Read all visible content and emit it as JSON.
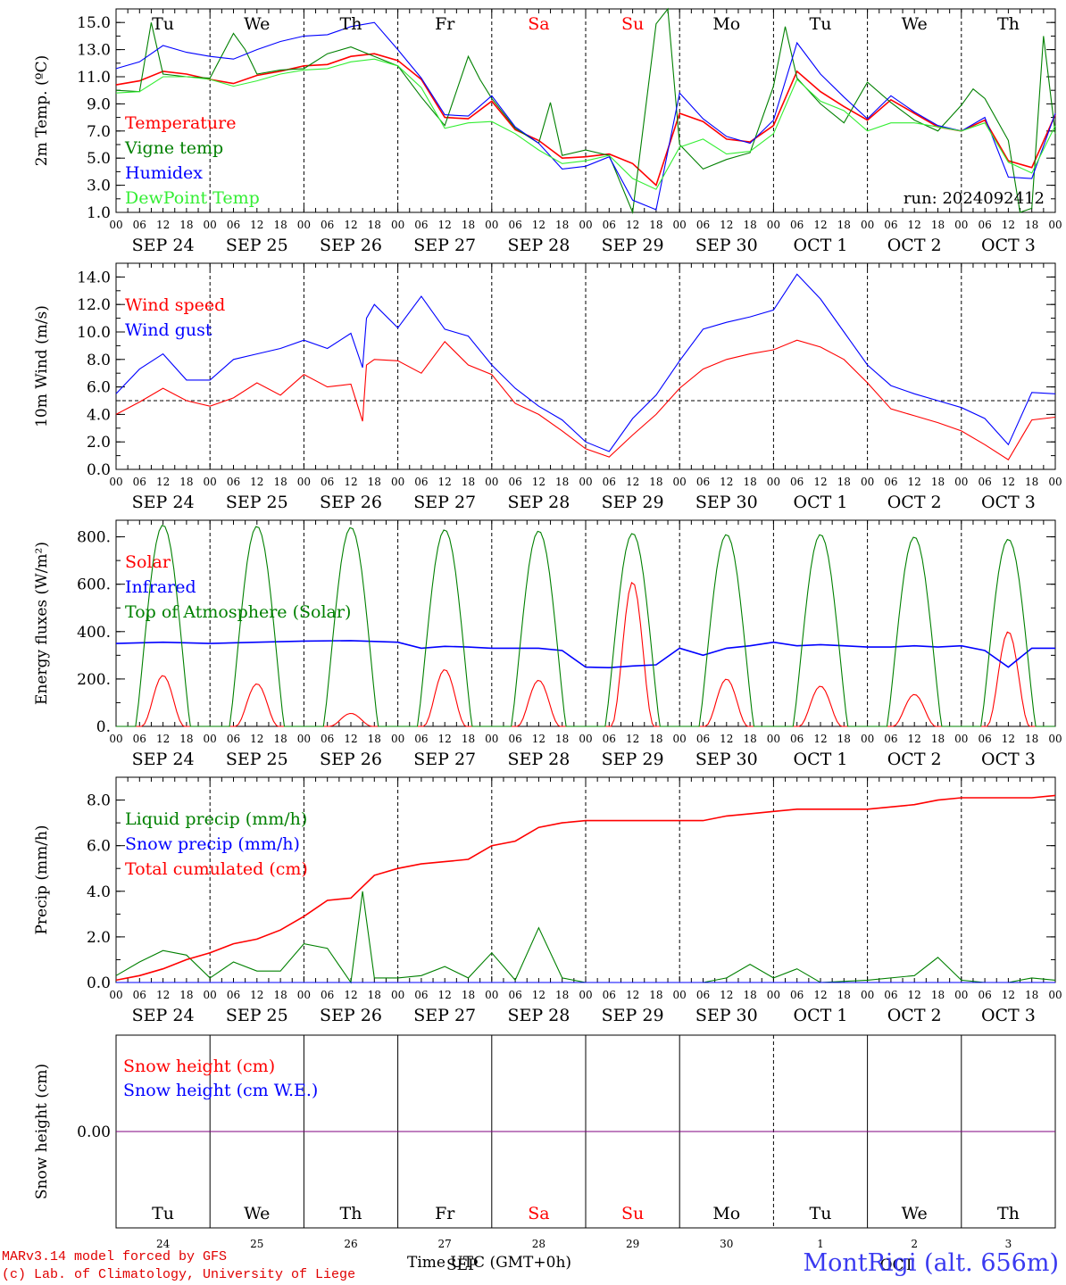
{
  "run_label": "run: 2024092412",
  "days": [
    {
      "dow": "Tu",
      "date": "SEP 24",
      "num": "24",
      "weekend": false
    },
    {
      "dow": "We",
      "date": "SEP 25",
      "num": "25",
      "weekend": false
    },
    {
      "dow": "Th",
      "date": "SEP 26",
      "num": "26",
      "weekend": false
    },
    {
      "dow": "Fr",
      "date": "SEP 27",
      "num": "27",
      "weekend": false
    },
    {
      "dow": "Sa",
      "date": "SEP 28",
      "num": "28",
      "weekend": true
    },
    {
      "dow": "Su",
      "date": "SEP 29",
      "num": "29",
      "weekend": true
    },
    {
      "dow": "Mo",
      "date": "SEP 30",
      "num": "30",
      "weekend": false
    },
    {
      "dow": "Tu",
      "date": "OCT  1",
      "num": "1",
      "weekend": false
    },
    {
      "dow": "We",
      "date": "OCT  2",
      "num": "2",
      "weekend": false
    },
    {
      "dow": "Th",
      "date": "OCT  3",
      "num": "3",
      "weekend": false
    }
  ],
  "hour_ticks": [
    "00",
    "06",
    "12",
    "18"
  ],
  "bottom_axis": {
    "month_left": "SEP",
    "month_right": "OCT",
    "title": "Time UTC (GMT+0h)"
  },
  "footer": {
    "line1": "MARv3.14 model forced by GFS",
    "line2": "(c) Lab. of Climatology, University of Liege",
    "station": "MontRigi (alt. 656m)"
  },
  "colors": {
    "red": "#ff0000",
    "darkgreen": "#008000",
    "blue": "#0000ff",
    "lightgreen": "#33ee33",
    "purple": "#7f007f",
    "weekend": "#ff0000"
  },
  "chart_data": [
    {
      "type": "line",
      "ylabel": "2m Temp. (ºC)",
      "ylim": [
        1,
        16
      ],
      "yticks": [
        "1.0",
        "3.0",
        "5.0",
        "7.0",
        "9.0",
        "11.0",
        "13.0",
        "15.0"
      ],
      "x_unit": "hours from SEP 24 00 UTC",
      "series": [
        {
          "name": "Temperature",
          "color": "red",
          "x": [
            0,
            6,
            12,
            18,
            24,
            30,
            36,
            42,
            48,
            54,
            60,
            66,
            72,
            78,
            84,
            90,
            96,
            102,
            108,
            114,
            120,
            126,
            132,
            138,
            144,
            150,
            156,
            162,
            168,
            174,
            180,
            186,
            192,
            198,
            204,
            210,
            216,
            222,
            228,
            234,
            240
          ],
          "y": [
            10.4,
            10.7,
            11.4,
            11.2,
            10.8,
            10.5,
            11.1,
            11.4,
            11.8,
            11.9,
            12.5,
            12.7,
            12.2,
            10.8,
            8.0,
            7.9,
            9.2,
            7.1,
            6.3,
            5.0,
            5.1,
            5.3,
            4.6,
            3.0,
            8.3,
            7.7,
            6.4,
            6.2,
            7.4,
            11.4,
            9.9,
            8.8,
            7.8,
            9.3,
            8.3,
            7.3,
            7.0,
            7.8,
            4.8,
            4.3,
            8.2
          ]
        },
        {
          "name": "Vigne temp",
          "color": "darkgreen",
          "x": [
            0,
            6,
            9,
            12,
            18,
            24,
            30,
            33,
            36,
            42,
            48,
            54,
            60,
            66,
            72,
            78,
            84,
            90,
            93,
            96,
            102,
            108,
            111,
            114,
            120,
            126,
            132,
            138,
            141,
            144,
            150,
            156,
            162,
            168,
            171,
            174,
            180,
            186,
            192,
            198,
            204,
            210,
            216,
            219,
            222,
            228,
            231,
            234,
            237,
            240
          ],
          "y": [
            10.0,
            9.9,
            15.0,
            11.2,
            11.0,
            10.9,
            14.2,
            13.0,
            11.2,
            11.5,
            11.6,
            12.7,
            13.2,
            12.5,
            11.8,
            9.5,
            7.4,
            12.5,
            10.8,
            9.4,
            7.2,
            6.1,
            9.1,
            5.2,
            5.6,
            5.2,
            1.0,
            14.9,
            16.0,
            6.0,
            4.2,
            4.9,
            5.4,
            10.3,
            14.7,
            10.9,
            9.0,
            7.6,
            10.6,
            9.1,
            7.8,
            7.0,
            8.9,
            10.1,
            9.4,
            6.3,
            0.5,
            1.3,
            14.0,
            6.8
          ]
        },
        {
          "name": "Humidex",
          "color": "blue",
          "x": [
            0,
            6,
            12,
            18,
            24,
            30,
            36,
            42,
            48,
            54,
            60,
            66,
            72,
            78,
            84,
            90,
            96,
            102,
            108,
            114,
            120,
            126,
            132,
            138,
            144,
            150,
            156,
            162,
            168,
            174,
            180,
            186,
            192,
            198,
            204,
            210,
            216,
            222,
            228,
            234,
            240
          ],
          "y": [
            11.6,
            12.1,
            13.3,
            12.8,
            12.5,
            12.3,
            13.0,
            13.6,
            14.0,
            14.1,
            14.7,
            15.0,
            13.0,
            10.9,
            8.2,
            8.1,
            9.6,
            7.3,
            6.1,
            4.2,
            4.4,
            5.1,
            1.9,
            1.2,
            9.8,
            7.9,
            6.6,
            6.1,
            7.8,
            13.5,
            11.2,
            9.5,
            7.9,
            9.6,
            8.4,
            7.4,
            7.0,
            8.0,
            3.6,
            3.5,
            8.3
          ]
        },
        {
          "name": "DewPoint Temp",
          "color": "lightgreen",
          "x": [
            0,
            6,
            12,
            18,
            24,
            30,
            36,
            42,
            48,
            54,
            60,
            66,
            72,
            78,
            84,
            90,
            96,
            102,
            108,
            114,
            120,
            126,
            132,
            138,
            144,
            150,
            156,
            162,
            168,
            174,
            180,
            186,
            192,
            198,
            204,
            210,
            216,
            222,
            228,
            234,
            240
          ],
          "y": [
            9.8,
            9.9,
            11.0,
            11.0,
            10.8,
            10.3,
            10.7,
            11.2,
            11.5,
            11.6,
            12.1,
            12.3,
            11.8,
            10.2,
            7.2,
            7.6,
            7.7,
            6.8,
            5.6,
            4.6,
            4.8,
            5.2,
            3.5,
            2.7,
            5.8,
            6.4,
            5.3,
            5.5,
            6.8,
            10.8,
            9.2,
            8.5,
            7.0,
            7.6,
            7.6,
            7.3,
            7.0,
            7.6,
            4.7,
            3.9,
            7.4
          ]
        }
      ]
    },
    {
      "type": "line",
      "ylabel": "10m Wind (m/s)",
      "ylim": [
        0,
        15
      ],
      "yticks": [
        "0.0",
        "2.0",
        "4.0",
        "6.0",
        "8.0",
        "10.0",
        "12.0",
        "14.0"
      ],
      "reference_line": 5,
      "series": [
        {
          "name": "Wind speed",
          "color": "red",
          "x": [
            0,
            6,
            12,
            18,
            24,
            30,
            36,
            42,
            48,
            54,
            60,
            63,
            64,
            66,
            72,
            78,
            84,
            90,
            96,
            102,
            108,
            114,
            120,
            126,
            132,
            138,
            144,
            150,
            156,
            162,
            168,
            174,
            180,
            186,
            192,
            198,
            204,
            210,
            216,
            222,
            228,
            234,
            240
          ],
          "y": [
            4.0,
            4.9,
            5.9,
            5.0,
            4.6,
            5.2,
            6.3,
            5.4,
            6.9,
            6.0,
            6.2,
            3.5,
            7.6,
            8.0,
            7.9,
            7.0,
            9.3,
            7.6,
            6.9,
            4.8,
            4.0,
            2.8,
            1.5,
            0.9,
            2.5,
            4.0,
            5.9,
            7.3,
            8.0,
            8.4,
            8.7,
            9.4,
            8.9,
            8.0,
            6.3,
            4.4,
            3.9,
            3.4,
            2.8,
            1.8,
            0.7,
            3.6,
            3.8
          ]
        },
        {
          "name": "Wind gust",
          "color": "blue",
          "x": [
            0,
            6,
            12,
            18,
            24,
            30,
            36,
            42,
            48,
            54,
            60,
            63,
            64,
            66,
            72,
            78,
            84,
            90,
            96,
            102,
            108,
            114,
            120,
            126,
            132,
            138,
            144,
            150,
            156,
            162,
            168,
            174,
            180,
            186,
            192,
            198,
            204,
            210,
            216,
            222,
            228,
            234,
            240
          ],
          "y": [
            5.5,
            7.3,
            8.4,
            6.5,
            6.5,
            8.0,
            8.4,
            8.8,
            9.4,
            8.8,
            9.9,
            7.4,
            11.0,
            12.0,
            10.3,
            12.6,
            10.2,
            9.7,
            7.6,
            5.9,
            4.6,
            3.6,
            2.0,
            1.3,
            3.7,
            5.4,
            7.9,
            10.2,
            10.7,
            11.1,
            11.6,
            14.2,
            12.4,
            10.0,
            7.6,
            6.1,
            5.5,
            5.0,
            4.5,
            3.7,
            1.8,
            5.6,
            5.5
          ]
        }
      ]
    },
    {
      "type": "line",
      "ylabel": "Energy fluxes (W/m²)",
      "ylim": [
        0,
        870
      ],
      "yticks": [
        "0.",
        "200.",
        "400.",
        "600.",
        "800."
      ],
      "series": [
        {
          "name": "Solar",
          "color": "red",
          "peaks": [
            215,
            180,
            55,
            240,
            195,
            610,
            200,
            170,
            135,
            400
          ],
          "peak_hour": 12
        },
        {
          "name": "Infrared",
          "color": "blue",
          "x": [
            0,
            12,
            24,
            36,
            48,
            60,
            72,
            78,
            84,
            90,
            96,
            102,
            108,
            114,
            120,
            126,
            132,
            138,
            144,
            150,
            156,
            162,
            168,
            174,
            180,
            186,
            192,
            198,
            204,
            210,
            216,
            222,
            228,
            234,
            240
          ],
          "y": [
            350,
            355,
            350,
            355,
            360,
            362,
            355,
            330,
            338,
            335,
            330,
            330,
            330,
            320,
            250,
            248,
            255,
            260,
            330,
            300,
            330,
            340,
            355,
            340,
            345,
            340,
            335,
            335,
            340,
            335,
            340,
            320,
            250,
            330,
            330
          ]
        },
        {
          "name": "Top of Atmosphere (Solar)",
          "color": "darkgreen",
          "peaks": [
            850,
            845,
            840,
            830,
            825,
            815,
            810,
            810,
            800,
            790
          ],
          "peak_hour": 12
        }
      ]
    },
    {
      "type": "line",
      "ylabel": "Precip (mm/h)",
      "ylim": [
        0,
        9
      ],
      "yticks": [
        "0.0",
        "2.0",
        "4.0",
        "6.0",
        "8.0"
      ],
      "series": [
        {
          "name": "Liquid precip (mm/h)",
          "color": "darkgreen",
          "x": [
            0,
            6,
            12,
            18,
            24,
            30,
            36,
            42,
            48,
            54,
            60,
            63,
            66,
            72,
            78,
            84,
            90,
            96,
            102,
            108,
            114,
            120,
            132,
            144,
            150,
            156,
            162,
            168,
            174,
            180,
            192,
            204,
            210,
            216,
            222,
            228,
            234,
            240
          ],
          "y": [
            0.3,
            0.9,
            1.4,
            1.2,
            0.2,
            0.9,
            0.5,
            0.5,
            1.7,
            1.5,
            0.0,
            4.0,
            0.2,
            0.2,
            0.3,
            0.7,
            0.2,
            1.3,
            0.1,
            2.4,
            0.2,
            0.0,
            0.0,
            0.0,
            0.0,
            0.2,
            0.8,
            0.2,
            0.6,
            0.0,
            0.1,
            0.3,
            1.1,
            0.1,
            0.0,
            0.0,
            0.2,
            0.1
          ]
        },
        {
          "name": "Snow precip (mm/h)",
          "color": "blue",
          "x": [
            0,
            240
          ],
          "y": [
            0,
            0
          ]
        },
        {
          "name": "Total cumulated (cm)",
          "color": "red",
          "x": [
            0,
            6,
            12,
            18,
            24,
            30,
            36,
            42,
            48,
            54,
            60,
            63,
            66,
            72,
            78,
            84,
            90,
            96,
            102,
            108,
            114,
            120,
            132,
            144,
            150,
            156,
            162,
            168,
            174,
            180,
            192,
            204,
            210,
            216,
            222,
            228,
            234,
            240
          ],
          "y": [
            0.1,
            0.3,
            0.6,
            1.0,
            1.3,
            1.7,
            1.9,
            2.3,
            2.9,
            3.6,
            3.7,
            4.2,
            4.7,
            5.0,
            5.2,
            5.3,
            5.4,
            6.0,
            6.2,
            6.8,
            7.0,
            7.1,
            7.1,
            7.1,
            7.1,
            7.3,
            7.4,
            7.5,
            7.6,
            7.6,
            7.6,
            7.8,
            8.0,
            8.1,
            8.1,
            8.1,
            8.1,
            8.2
          ]
        }
      ]
    },
    {
      "type": "line",
      "ylabel": "Snow height (cm)",
      "ylim": [
        -1,
        1
      ],
      "yticks": [
        "0.00"
      ],
      "series": [
        {
          "name": "Snow height (cm)",
          "color": "red",
          "x": [
            0,
            240
          ],
          "y": [
            0,
            0
          ]
        },
        {
          "name": "Snow height (cm W.E.)",
          "color": "blue",
          "x": [
            0,
            240
          ],
          "y": [
            0,
            0
          ]
        }
      ]
    }
  ]
}
